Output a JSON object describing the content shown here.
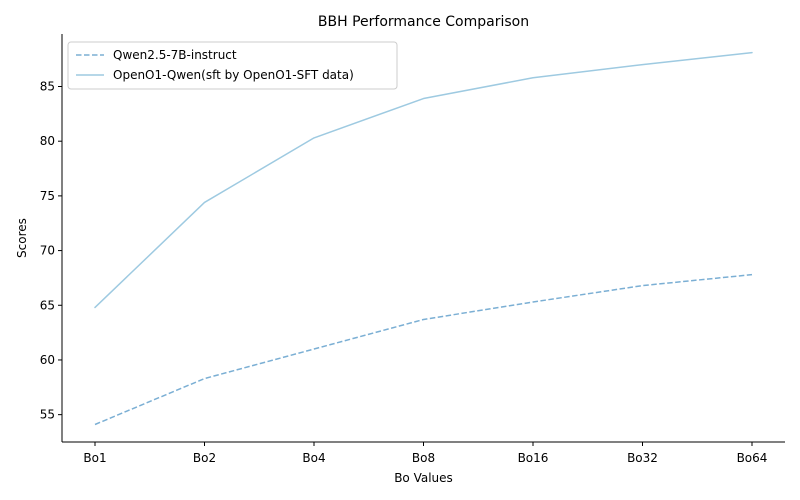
{
  "chart_data": {
    "type": "line",
    "title": "BBH Performance Comparison",
    "xlabel": "Bo Values",
    "ylabel": "Scores",
    "categories": [
      "Bo1",
      "Bo2",
      "Bo4",
      "Bo8",
      "Bo16",
      "Bo32",
      "Bo64"
    ],
    "ylim": [
      52.5,
      89.8
    ],
    "yticks": [
      55,
      60,
      65,
      70,
      75,
      80,
      85
    ],
    "grid": false,
    "legend_position": "top-left",
    "series": [
      {
        "name": "Qwen2.5-7B-instruct",
        "values": [
          54.1,
          58.3,
          61.0,
          63.7,
          65.3,
          66.8,
          67.8
        ],
        "color": "#7bafd4",
        "linestyle": "dashed"
      },
      {
        "name": "OpenO1-Qwen(sft by OpenO1-SFT data)",
        "values": [
          64.8,
          74.4,
          80.3,
          83.9,
          85.8,
          87.0,
          88.1
        ],
        "color": "#9ecae1",
        "linestyle": "solid"
      }
    ]
  }
}
